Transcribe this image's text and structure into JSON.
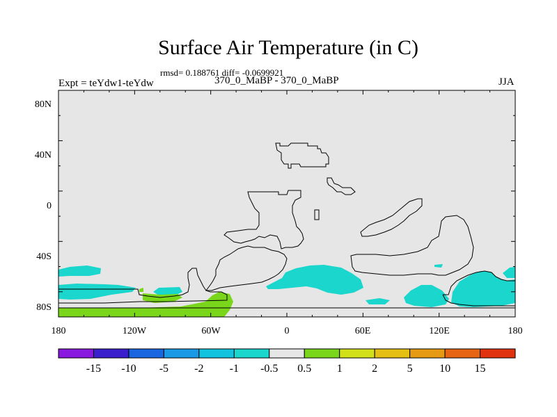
{
  "header": {
    "title": "Surface Air Temperature (in C)",
    "stats": "rmsd= 0.188761 diff= -0.0699921",
    "expt": "Expt = teYdw1-teYdw",
    "runs": "370_0_MaBP - 370_0_MaBP",
    "season": "JJA"
  },
  "map": {
    "lon_ticks": [
      "180",
      "120W",
      "60W",
      "0",
      "60E",
      "120E",
      "180"
    ],
    "lat_ticks": [
      "80N",
      "40N",
      "0",
      "40S",
      "80S"
    ],
    "background_color": "#e6e6e6",
    "coastline_color": "#000000"
  },
  "colorbar": {
    "colors": [
      "#8a19e0",
      "#3a1fcc",
      "#1a66e0",
      "#1a9ae6",
      "#12c3e0",
      "#1ad6cc",
      "#e6e6e6",
      "#7ad61a",
      "#d2e01a",
      "#e6bf14",
      "#e69a14",
      "#e66414",
      "#e0320e"
    ],
    "labels": [
      "-15",
      "-10",
      "-5",
      "-2",
      "-1",
      "-0.5",
      "0.5",
      "1",
      "2",
      "5",
      "10",
      "15"
    ]
  }
}
